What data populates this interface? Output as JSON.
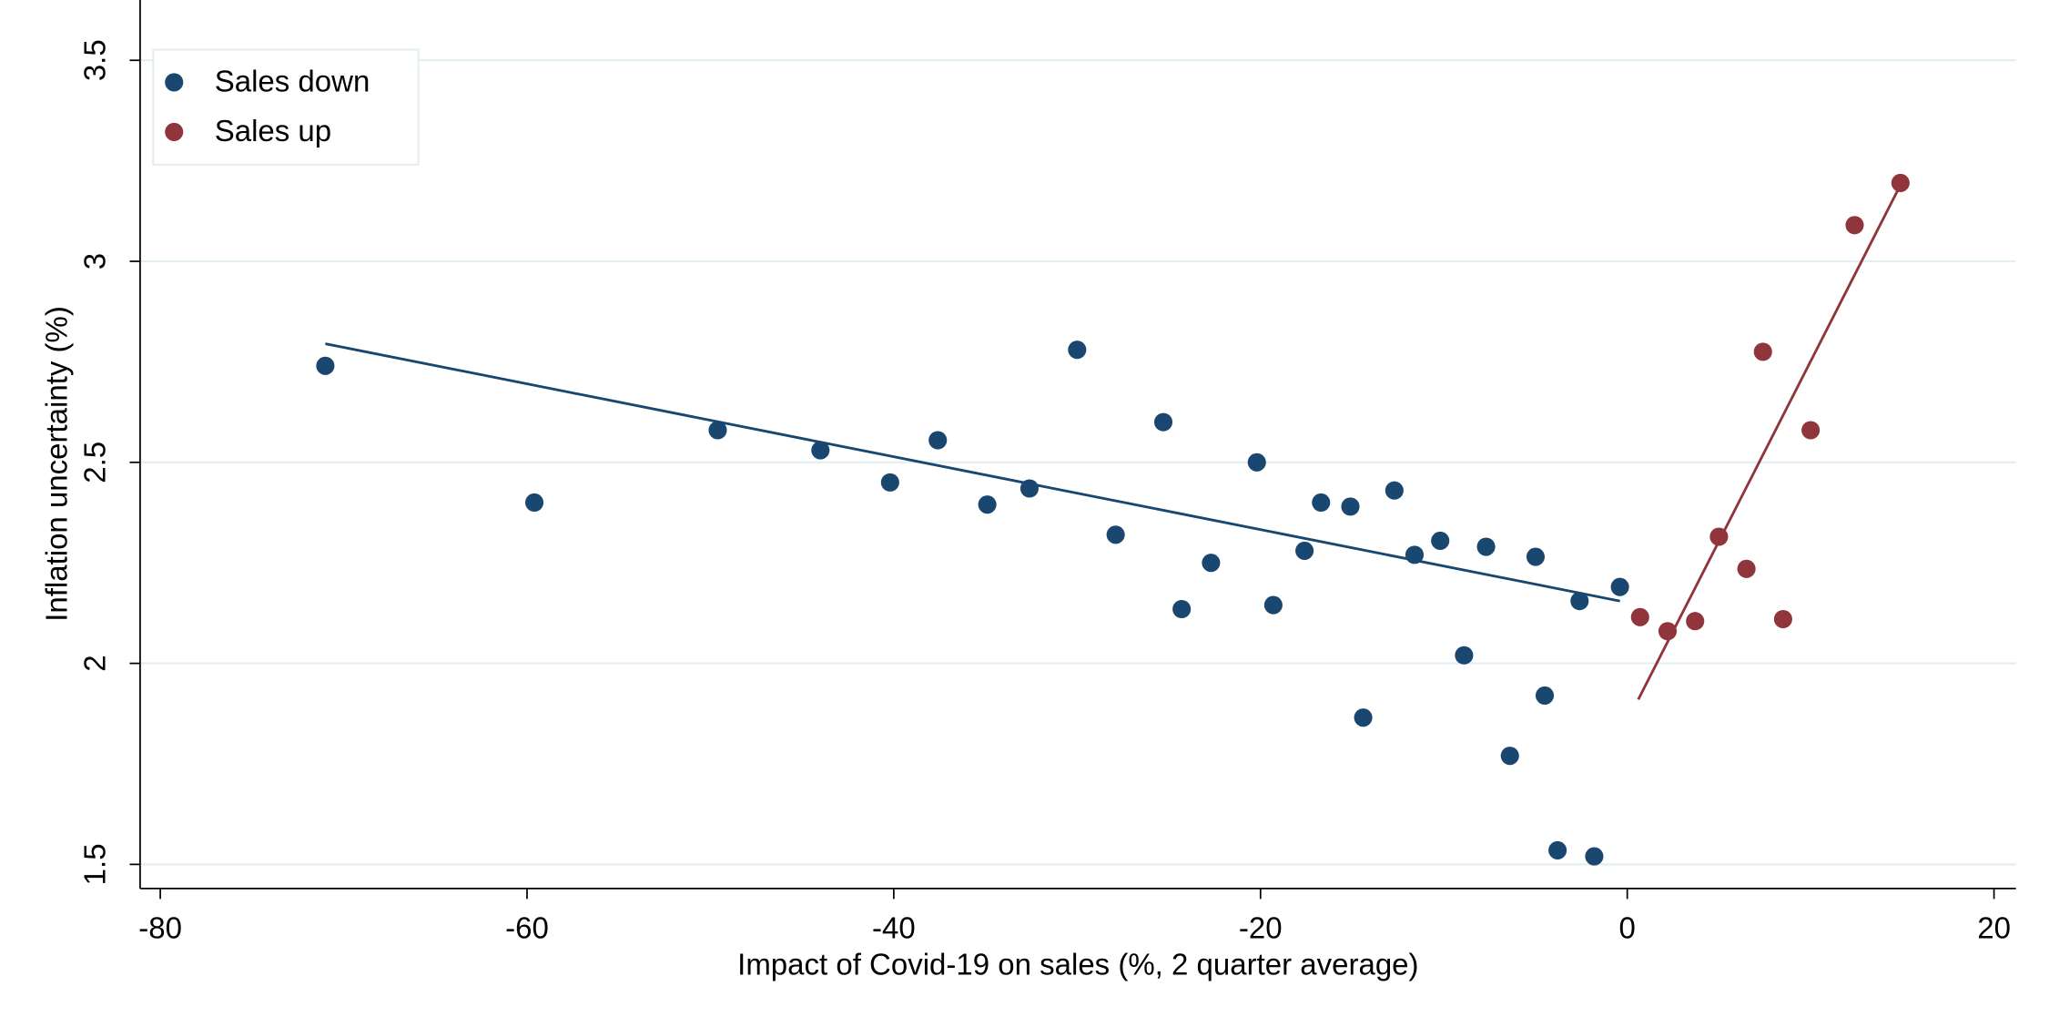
{
  "chart_data": {
    "type": "scatter",
    "x_label": "Impact of Covid-19 on sales (%, 2 quarter average)",
    "y_label": "Inflation uncertainty (%)",
    "xlim": [
      -81.1,
      21.2
    ],
    "ylim": [
      1.44,
      3.65
    ],
    "xticks": [
      -80,
      -60,
      -40,
      -20,
      0,
      20
    ],
    "yticks": [
      1.5,
      2,
      2.5,
      3,
      3.5
    ],
    "grid": true,
    "legend": "top-left",
    "series": [
      {
        "name": "Sales down",
        "color": "#1a476f",
        "x": [
          -71,
          -59.6,
          -49.6,
          -44,
          -40.2,
          -37.6,
          -34.9,
          -32.6,
          -30,
          -27.9,
          -25.3,
          -24.3,
          -22.7,
          -20.2,
          -19.3,
          -17.6,
          -16.7,
          -15.1,
          -14.4,
          -12.7,
          -11.6,
          -10.2,
          -8.9,
          -7.7,
          -6.4,
          -5,
          -4.5,
          -3.8,
          -2.6,
          -1.8,
          -0.4
        ],
        "values": [
          2.74,
          2.4,
          2.58,
          2.53,
          2.45,
          2.555,
          2.395,
          2.435,
          2.78,
          2.32,
          2.6,
          2.135,
          2.25,
          2.5,
          2.145,
          2.28,
          2.4,
          2.39,
          1.865,
          2.43,
          2.27,
          2.305,
          2.02,
          2.29,
          1.77,
          2.265,
          1.92,
          1.535,
          2.155,
          1.52,
          2.19
        ],
        "fit": {
          "x": [
            -71,
            -0.4
          ],
          "values": [
            2.795,
            2.155
          ]
        }
      },
      {
        "name": "Sales up",
        "color": "#90353b",
        "x": [
          0.7,
          2.2,
          3.7,
          5,
          6.5,
          7.4,
          8.5,
          10,
          12.4,
          14.9
        ],
        "values": [
          2.115,
          2.08,
          2.105,
          2.315,
          2.235,
          2.775,
          2.11,
          2.58,
          3.09,
          3.195
        ],
        "fit": {
          "x": [
            0.6,
            14.9
          ],
          "values": [
            1.91,
            3.19
          ]
        }
      }
    ]
  }
}
